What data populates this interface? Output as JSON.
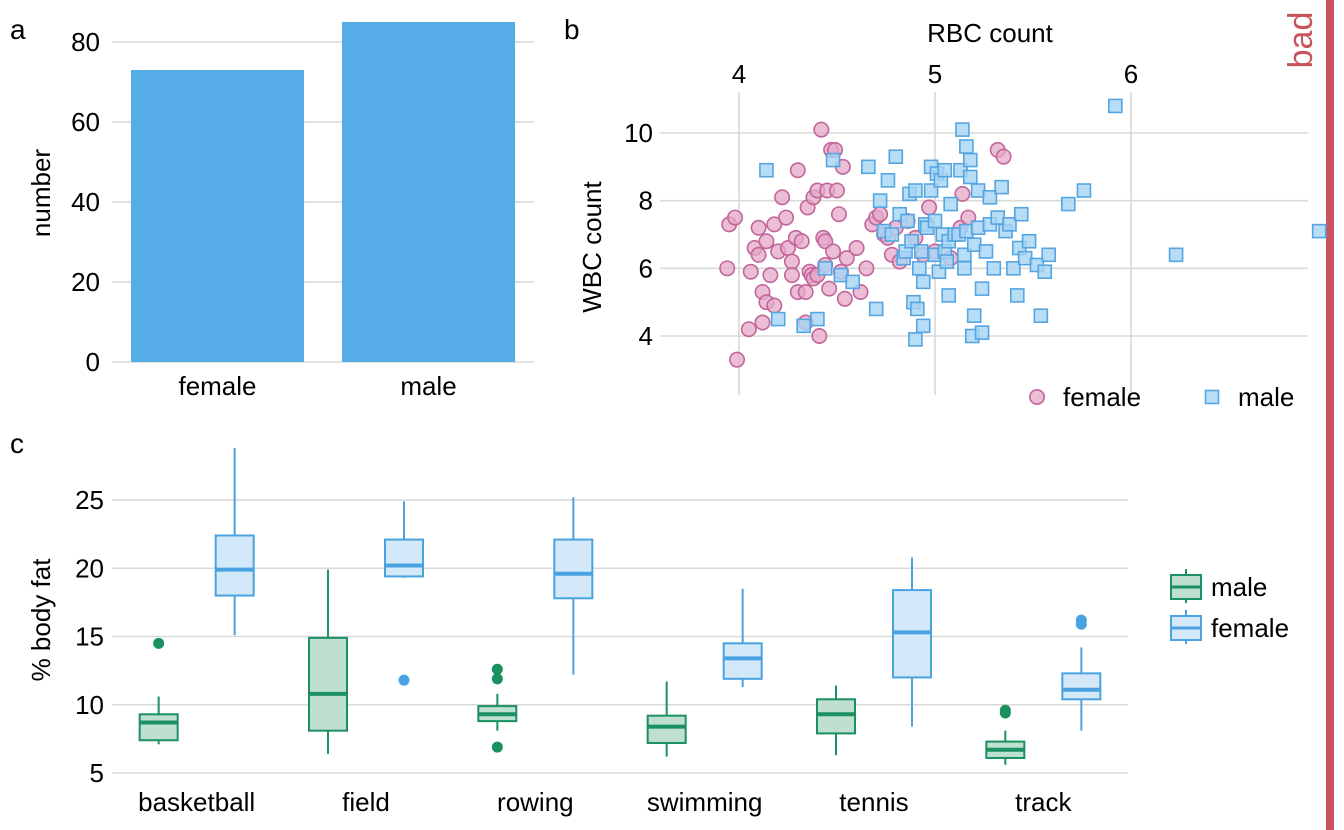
{
  "colors": {
    "bar": "#56ACE6",
    "female_point_fill": "#E6A8C8",
    "female_point_stroke": "#C1659A",
    "male_point_fill": "#A6D4F5",
    "male_point_stroke": "#56A5E0",
    "male_box_fill": "#BFE0D1",
    "male_box_stroke": "#1B9060",
    "female_box_fill": "#D3E8F9",
    "female_box_stroke": "#4AA3E0",
    "bad_stripe": "#C8545E",
    "grid": "#D9D9D9"
  },
  "labels": {
    "panel_a": "a",
    "panel_b": "b",
    "panel_c": "c",
    "bad": "bad"
  },
  "chart_data": [
    {
      "type": "bar",
      "categories": [
        "female",
        "male"
      ],
      "values": [
        73,
        85
      ],
      "ylabel": "number",
      "xlabel": "",
      "ylim": [
        0,
        85
      ],
      "yticks": [
        0,
        20,
        40,
        60,
        80
      ],
      "grid": true
    },
    {
      "type": "scatter",
      "xlabel": "RBC count",
      "ylabel": "WBC count",
      "xlim": [
        3.95,
        6.95
      ],
      "ylim": [
        3.0,
        11.0
      ],
      "xticks": [
        4,
        5,
        6
      ],
      "yticks": [
        4,
        6,
        8,
        10
      ],
      "x_axis_position": "top",
      "legend_position": "bottom-right",
      "grid": true,
      "series": [
        {
          "name": "female",
          "marker": "circle",
          "points": [
            [
              3.95,
              7.3
            ],
            [
              3.98,
              7.5
            ],
            [
              3.94,
              6.0
            ],
            [
              4.05,
              4.2
            ],
            [
              3.99,
              3.3
            ],
            [
              4.06,
              5.9
            ],
            [
              4.08,
              6.6
            ],
            [
              4.1,
              7.2
            ],
            [
              4.1,
              6.4
            ],
            [
              4.12,
              5.3
            ],
            [
              4.12,
              4.4
            ],
            [
              4.14,
              5.0
            ],
            [
              4.14,
              6.8
            ],
            [
              4.16,
              5.8
            ],
            [
              4.18,
              4.9
            ],
            [
              4.18,
              7.3
            ],
            [
              4.2,
              6.5
            ],
            [
              4.22,
              8.1
            ],
            [
              4.24,
              7.5
            ],
            [
              4.25,
              6.6
            ],
            [
              4.27,
              6.2
            ],
            [
              4.27,
              5.8
            ],
            [
              4.29,
              6.9
            ],
            [
              4.3,
              8.9
            ],
            [
              4.3,
              5.3
            ],
            [
              4.32,
              6.8
            ],
            [
              4.34,
              5.3
            ],
            [
              4.34,
              4.4
            ],
            [
              4.35,
              7.8
            ],
            [
              4.36,
              5.9
            ],
            [
              4.37,
              5.8
            ],
            [
              4.38,
              8.1
            ],
            [
              4.38,
              5.7
            ],
            [
              4.4,
              8.3
            ],
            [
              4.4,
              5.8
            ],
            [
              4.41,
              4.0
            ],
            [
              4.42,
              10.1
            ],
            [
              4.43,
              6.9
            ],
            [
              4.44,
              6.1
            ],
            [
              4.44,
              6.8
            ],
            [
              4.45,
              8.3
            ],
            [
              4.46,
              5.4
            ],
            [
              4.47,
              9.5
            ],
            [
              4.48,
              6.5
            ],
            [
              4.49,
              9.5
            ],
            [
              4.5,
              8.3
            ],
            [
              4.51,
              7.6
            ],
            [
              4.52,
              5.9
            ],
            [
              4.53,
              9.0
            ],
            [
              4.54,
              5.1
            ],
            [
              4.55,
              6.3
            ],
            [
              4.6,
              6.6
            ],
            [
              4.62,
              5.3
            ],
            [
              4.65,
              6.0
            ],
            [
              4.68,
              7.3
            ],
            [
              4.7,
              7.5
            ],
            [
              4.72,
              7.6
            ],
            [
              4.74,
              7.0
            ],
            [
              4.76,
              6.9
            ],
            [
              4.78,
              6.4
            ],
            [
              4.8,
              7.2
            ],
            [
              4.82,
              6.2
            ],
            [
              4.86,
              7.4
            ],
            [
              4.9,
              6.9
            ],
            [
              4.94,
              6.4
            ],
            [
              4.97,
              7.8
            ],
            [
              5.0,
              6.5
            ],
            [
              5.08,
              6.3
            ],
            [
              5.13,
              7.2
            ],
            [
              5.14,
              8.2
            ],
            [
              5.17,
              7.5
            ],
            [
              5.32,
              9.5
            ],
            [
              5.35,
              9.3
            ]
          ]
        },
        {
          "name": "male",
          "marker": "square",
          "points": [
            [
              4.14,
              8.9
            ],
            [
              4.2,
              4.5
            ],
            [
              4.33,
              4.3
            ],
            [
              4.4,
              4.5
            ],
            [
              4.44,
              6.0
            ],
            [
              4.48,
              9.2
            ],
            [
              4.52,
              5.8
            ],
            [
              4.58,
              5.6
            ],
            [
              4.66,
              9.0
            ],
            [
              4.7,
              4.8
            ],
            [
              4.72,
              8.0
            ],
            [
              4.74,
              7.1
            ],
            [
              4.76,
              8.6
            ],
            [
              4.78,
              7.0
            ],
            [
              4.8,
              9.3
            ],
            [
              4.82,
              7.6
            ],
            [
              4.84,
              6.3
            ],
            [
              4.85,
              6.5
            ],
            [
              4.86,
              7.4
            ],
            [
              4.87,
              8.2
            ],
            [
              4.88,
              6.8
            ],
            [
              4.89,
              5.0
            ],
            [
              4.9,
              3.9
            ],
            [
              4.9,
              8.3
            ],
            [
              4.91,
              4.8
            ],
            [
              4.92,
              6.0
            ],
            [
              4.93,
              6.5
            ],
            [
              4.94,
              5.6
            ],
            [
              4.94,
              4.3
            ],
            [
              4.95,
              7.3
            ],
            [
              4.96,
              7.2
            ],
            [
              4.98,
              8.3
            ],
            [
              4.98,
              9.0
            ],
            [
              5.0,
              6.4
            ],
            [
              5.0,
              7.4
            ],
            [
              5.01,
              8.8
            ],
            [
              5.02,
              5.9
            ],
            [
              5.03,
              8.6
            ],
            [
              5.04,
              7.0
            ],
            [
              5.05,
              8.9
            ],
            [
              5.05,
              6.5
            ],
            [
              5.06,
              6.2
            ],
            [
              5.07,
              5.2
            ],
            [
              5.07,
              6.8
            ],
            [
              5.08,
              7.9
            ],
            [
              5.1,
              7.0
            ],
            [
              5.12,
              7.0
            ],
            [
              5.13,
              8.9
            ],
            [
              5.14,
              10.1
            ],
            [
              5.15,
              6.4
            ],
            [
              5.15,
              6.0
            ],
            [
              5.16,
              7.1
            ],
            [
              5.16,
              9.6
            ],
            [
              5.18,
              8.7
            ],
            [
              5.18,
              9.2
            ],
            [
              5.19,
              4.0
            ],
            [
              5.2,
              4.6
            ],
            [
              5.2,
              6.7
            ],
            [
              5.22,
              8.3
            ],
            [
              5.22,
              7.2
            ],
            [
              5.24,
              5.4
            ],
            [
              5.24,
              4.1
            ],
            [
              5.26,
              6.5
            ],
            [
              5.28,
              7.3
            ],
            [
              5.28,
              8.1
            ],
            [
              5.3,
              6.0
            ],
            [
              5.32,
              7.5
            ],
            [
              5.34,
              8.4
            ],
            [
              5.36,
              7.1
            ],
            [
              5.38,
              7.3
            ],
            [
              5.4,
              6.0
            ],
            [
              5.42,
              5.2
            ],
            [
              5.43,
              6.6
            ],
            [
              5.44,
              7.6
            ],
            [
              5.46,
              6.3
            ],
            [
              5.48,
              6.8
            ],
            [
              5.52,
              6.1
            ],
            [
              5.54,
              4.6
            ],
            [
              5.56,
              5.9
            ],
            [
              5.58,
              6.4
            ],
            [
              5.68,
              7.9
            ],
            [
              5.76,
              8.3
            ],
            [
              5.92,
              10.8
            ],
            [
              6.23,
              6.4
            ],
            [
              6.96,
              7.1
            ]
          ]
        }
      ]
    },
    {
      "type": "box",
      "categories": [
        "basketball",
        "field",
        "rowing",
        "swimming",
        "tennis",
        "track"
      ],
      "ylabel": "% body fat",
      "xlabel": "",
      "ylim": [
        4.8,
        29.5
      ],
      "yticks": [
        5,
        10,
        15,
        20,
        25
      ],
      "legend_position": "right",
      "grid": true,
      "series": [
        {
          "name": "male",
          "boxes": [
            {
              "whisker_low": 7.1,
              "q1": 7.4,
              "median": 8.7,
              "q3": 9.3,
              "whisker_high": 10.6,
              "outliers": [
                14.5
              ]
            },
            {
              "whisker_low": 6.4,
              "q1": 8.1,
              "median": 10.8,
              "q3": 14.9,
              "whisker_high": 19.9,
              "outliers": []
            },
            {
              "whisker_low": 8.1,
              "q1": 8.8,
              "median": 9.3,
              "q3": 9.9,
              "whisker_high": 10.8,
              "outliers": [
                6.9,
                11.9,
                12.6
              ]
            },
            {
              "whisker_low": 6.2,
              "q1": 7.2,
              "median": 8.4,
              "q3": 9.2,
              "whisker_high": 11.7,
              "outliers": []
            },
            {
              "whisker_low": 6.3,
              "q1": 7.9,
              "median": 9.3,
              "q3": 10.4,
              "whisker_high": 11.4,
              "outliers": []
            },
            {
              "whisker_low": 5.6,
              "q1": 6.1,
              "median": 6.7,
              "q3": 7.3,
              "whisker_high": 8.1,
              "outliers": [
                9.4,
                9.6
              ]
            }
          ]
        },
        {
          "name": "female",
          "boxes": [
            {
              "whisker_low": 15.1,
              "q1": 18.0,
              "median": 19.9,
              "q3": 22.4,
              "whisker_high": 28.8,
              "outliers": []
            },
            {
              "whisker_low": 19.3,
              "q1": 19.4,
              "median": 20.2,
              "q3": 22.1,
              "whisker_high": 24.9,
              "outliers": [
                11.8
              ]
            },
            {
              "whisker_low": 12.2,
              "q1": 17.8,
              "median": 19.6,
              "q3": 22.1,
              "whisker_high": 25.2,
              "outliers": []
            },
            {
              "whisker_low": 11.3,
              "q1": 11.9,
              "median": 13.4,
              "q3": 14.5,
              "whisker_high": 18.5,
              "outliers": []
            },
            {
              "whisker_low": 8.4,
              "q1": 12.0,
              "median": 15.3,
              "q3": 18.4,
              "whisker_high": 20.8,
              "outliers": []
            },
            {
              "whisker_low": 8.1,
              "q1": 10.4,
              "median": 11.1,
              "q3": 12.3,
              "whisker_high": 14.2,
              "outliers": [
                15.9,
                16.2
              ]
            }
          ]
        }
      ]
    }
  ]
}
